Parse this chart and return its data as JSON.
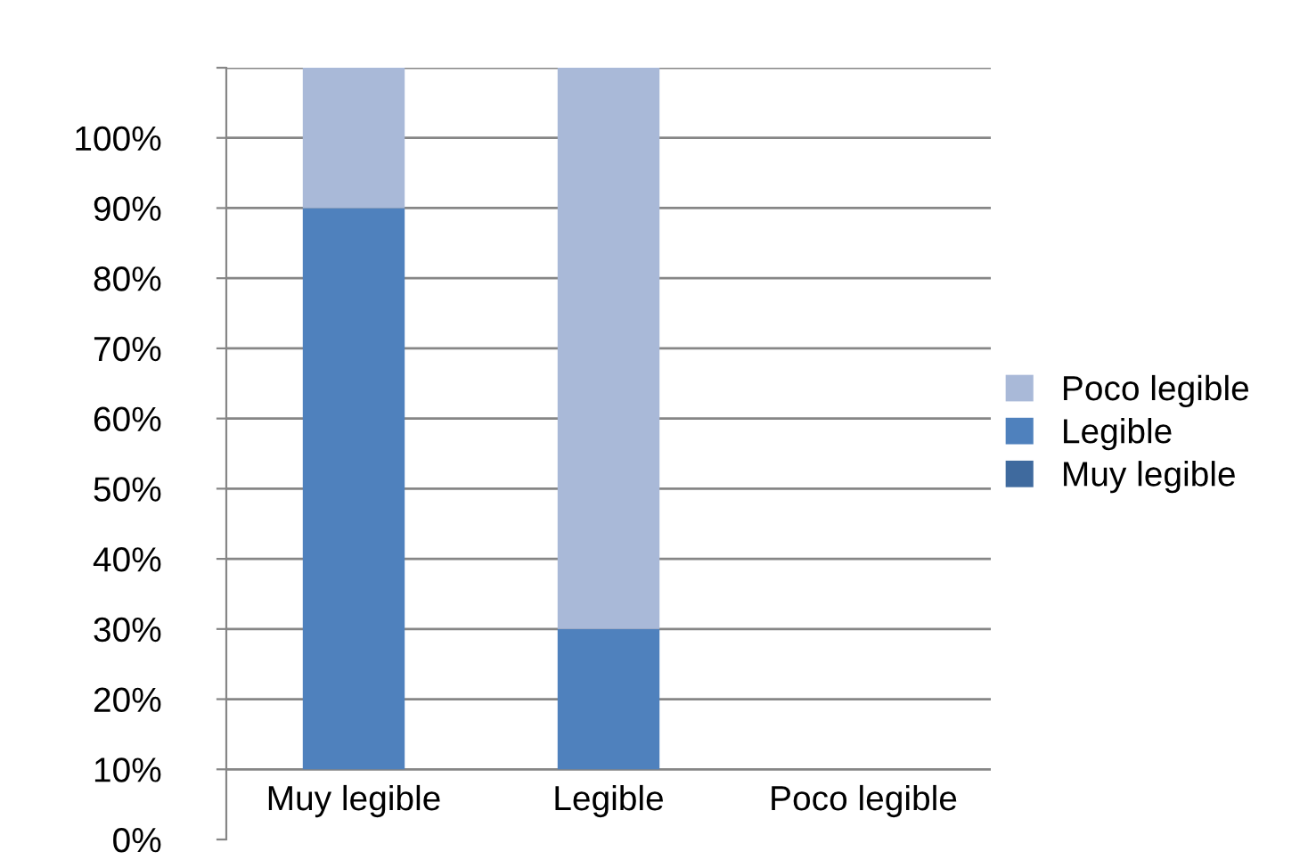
{
  "chart_data": {
    "type": "bar",
    "categories": [
      "Muy legible",
      "Legible",
      "Poco legible"
    ],
    "series": [
      {
        "name": "Muy legible",
        "color": "#3f6a9e",
        "values": [
          null,
          null,
          null
        ],
        "base": [
          null,
          null,
          null
        ]
      },
      {
        "name": "Legible",
        "color": "#4f81bd",
        "values": [
          80,
          20,
          null
        ],
        "base": [
          10,
          10,
          null
        ]
      },
      {
        "name": "Poco legible",
        "color": "#a9b9d8",
        "values": [
          20,
          80,
          null
        ],
        "base": [
          90,
          30,
          null
        ]
      }
    ],
    "ylim": [
      0,
      110
    ],
    "yticks": [
      {
        "value": 0,
        "label": "0%"
      },
      {
        "value": 10,
        "label": "10%"
      },
      {
        "value": 20,
        "label": "20%"
      },
      {
        "value": 30,
        "label": "30%"
      },
      {
        "value": 40,
        "label": "40%"
      },
      {
        "value": 50,
        "label": "50%"
      },
      {
        "value": 60,
        "label": "60%"
      },
      {
        "value": 70,
        "label": "70%"
      },
      {
        "value": 80,
        "label": "80%"
      },
      {
        "value": 90,
        "label": "90%"
      },
      {
        "value": 100,
        "label": "100%"
      },
      {
        "value": 110,
        "label": null
      }
    ],
    "grid": "y",
    "legend": "right"
  }
}
